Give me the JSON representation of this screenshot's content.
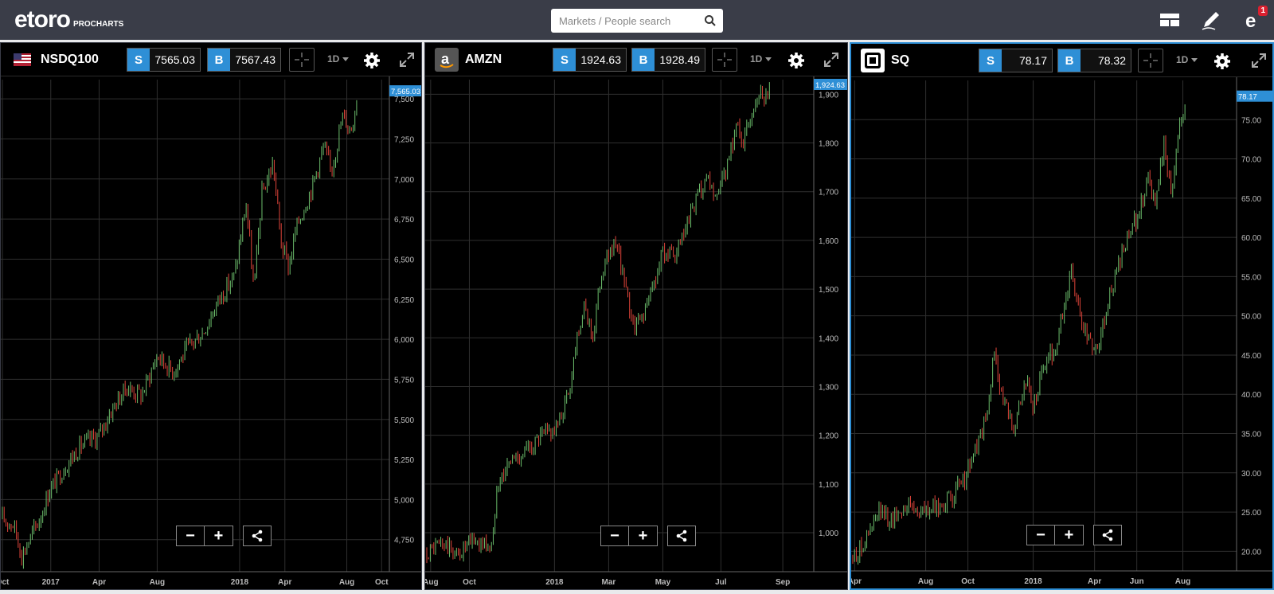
{
  "app": {
    "brand": "etoro",
    "product": "PROCHARTS",
    "search_placeholder": "Markets / People search",
    "notification_count": "1"
  },
  "colors": {
    "topbar": "#3a3d48",
    "accent": "#2e8fd6",
    "bull": "#6cbe6c",
    "bear": "#e0443a",
    "badge": "#d9202f"
  },
  "icons": [
    "search-icon",
    "layout-icon",
    "pencil-icon",
    "user-icon",
    "flag-icon",
    "amazon-icon",
    "square-icon",
    "crosshair-icon",
    "gear-icon",
    "expand-icon",
    "share-icon"
  ],
  "panels": [
    {
      "symbol": "NSDQ100",
      "sell_label": "S",
      "sell": "7565.03",
      "buy_label": "B",
      "buy": "7567.43",
      "timeframe": "1D",
      "chart_data": {
        "type": "candlestick",
        "last_price_label": "7,565.03",
        "ylim": [
          4550,
          7620
        ],
        "y_ticks": [
          4750,
          5000,
          5250,
          5500,
          5750,
          6000,
          6250,
          6500,
          6750,
          7000,
          7250,
          7500
        ],
        "y_tick_labels": [
          "4,750",
          "5,000",
          "5,250",
          "5,500",
          "5,750",
          "6,000",
          "6,250",
          "6,500",
          "6,750",
          "7,000",
          "7,250",
          "7,500"
        ],
        "x_tick_labels": [
          "Oct",
          "2017",
          "Apr",
          "Aug",
          "2018",
          "Apr",
          "Aug",
          "Oct"
        ],
        "x_ticks": [
          0,
          0.125,
          0.25,
          0.4,
          0.613,
          0.73,
          0.89,
          0.98
        ],
        "path": [
          [
            0,
            4880
          ],
          [
            0.03,
            4840
          ],
          [
            0.05,
            4650
          ],
          [
            0.1,
            4900
          ],
          [
            0.12,
            5050
          ],
          [
            0.16,
            5200
          ],
          [
            0.2,
            5330
          ],
          [
            0.25,
            5400
          ],
          [
            0.28,
            5550
          ],
          [
            0.32,
            5700
          ],
          [
            0.36,
            5650
          ],
          [
            0.4,
            5900
          ],
          [
            0.44,
            5800
          ],
          [
            0.48,
            5950
          ],
          [
            0.52,
            6050
          ],
          [
            0.56,
            6250
          ],
          [
            0.6,
            6400
          ],
          [
            0.63,
            6850
          ],
          [
            0.65,
            6300
          ],
          [
            0.67,
            6900
          ],
          [
            0.7,
            7100
          ],
          [
            0.72,
            6600
          ],
          [
            0.74,
            6450
          ],
          [
            0.76,
            6700
          ],
          [
            0.8,
            6950
          ],
          [
            0.83,
            7200
          ],
          [
            0.85,
            7050
          ],
          [
            0.88,
            7400
          ],
          [
            0.9,
            7300
          ],
          [
            0.92,
            7550
          ]
        ],
        "series_end": 0.92
      }
    },
    {
      "symbol": "AMZN",
      "sell_label": "S",
      "sell": "1924.63",
      "buy_label": "B",
      "buy": "1928.49",
      "timeframe": "1D",
      "chart_data": {
        "type": "candlestick",
        "last_price_label": "1,924.63",
        "ylim": [
          920,
          1930
        ],
        "y_ticks": [
          1000,
          1100,
          1200,
          1300,
          1400,
          1500,
          1600,
          1700,
          1800,
          1900
        ],
        "y_tick_labels": [
          "1,000",
          "1,100",
          "1,200",
          "1,300",
          "1,400",
          "1,500",
          "1,600",
          "1,700",
          "1,800",
          "1,900"
        ],
        "x_tick_labels": [
          "Aug",
          "Oct",
          "2018",
          "Mar",
          "May",
          "Jul",
          "Sep"
        ],
        "x_ticks": [
          0.01,
          0.11,
          0.33,
          0.47,
          0.61,
          0.76,
          0.92
        ],
        "path": [
          [
            0,
            960
          ],
          [
            0.04,
            980
          ],
          [
            0.08,
            955
          ],
          [
            0.12,
            985
          ],
          [
            0.17,
            970
          ],
          [
            0.18,
            1100
          ],
          [
            0.22,
            1150
          ],
          [
            0.26,
            1170
          ],
          [
            0.3,
            1200
          ],
          [
            0.34,
            1220
          ],
          [
            0.37,
            1300
          ],
          [
            0.39,
            1420
          ],
          [
            0.41,
            1460
          ],
          [
            0.43,
            1400
          ],
          [
            0.45,
            1530
          ],
          [
            0.48,
            1590
          ],
          [
            0.5,
            1560
          ],
          [
            0.52,
            1470
          ],
          [
            0.54,
            1420
          ],
          [
            0.57,
            1470
          ],
          [
            0.59,
            1520
          ],
          [
            0.61,
            1580
          ],
          [
            0.64,
            1560
          ],
          [
            0.67,
            1620
          ],
          [
            0.7,
            1690
          ],
          [
            0.73,
            1720
          ],
          [
            0.75,
            1680
          ],
          [
            0.78,
            1760
          ],
          [
            0.8,
            1840
          ],
          [
            0.82,
            1800
          ],
          [
            0.84,
            1870
          ],
          [
            0.86,
            1910
          ],
          [
            0.88,
            1900
          ],
          [
            0.89,
            1925
          ]
        ],
        "series_end": 0.89
      }
    },
    {
      "symbol": "SQ",
      "sell_label": "S",
      "sell": "78.17",
      "buy_label": "B",
      "buy": "78.32",
      "timeframe": "1D",
      "chart_data": {
        "type": "candlestick",
        "last_price_label": "78.17",
        "ylim": [
          17.5,
          80
        ],
        "y_ticks": [
          20,
          25,
          30,
          35,
          40,
          45,
          50,
          55,
          60,
          65,
          70,
          75
        ],
        "y_tick_labels": [
          "20.00",
          "25.00",
          "30.00",
          "35.00",
          "40.00",
          "45.00",
          "50.00",
          "55.00",
          "60.00",
          "65.00",
          "70.00",
          "75.00"
        ],
        "x_tick_labels": [
          "Apr",
          "Aug",
          "Oct",
          "2018",
          "Apr",
          "Jun",
          "Aug"
        ],
        "x_ticks": [
          0.005,
          0.19,
          0.3,
          0.47,
          0.63,
          0.74,
          0.86
        ],
        "path": [
          [
            0,
            19
          ],
          [
            0.04,
            22
          ],
          [
            0.07,
            25
          ],
          [
            0.1,
            24
          ],
          [
            0.14,
            26
          ],
          [
            0.18,
            25
          ],
          [
            0.22,
            25.5
          ],
          [
            0.26,
            27
          ],
          [
            0.29,
            29
          ],
          [
            0.32,
            33
          ],
          [
            0.35,
            37
          ],
          [
            0.37,
            46
          ],
          [
            0.39,
            39
          ],
          [
            0.42,
            36
          ],
          [
            0.45,
            42
          ],
          [
            0.47,
            38
          ],
          [
            0.5,
            44
          ],
          [
            0.53,
            46
          ],
          [
            0.55,
            51
          ],
          [
            0.57,
            56
          ],
          [
            0.59,
            50
          ],
          [
            0.61,
            47
          ],
          [
            0.64,
            46
          ],
          [
            0.66,
            51
          ],
          [
            0.69,
            56
          ],
          [
            0.72,
            60
          ],
          [
            0.75,
            64
          ],
          [
            0.77,
            68
          ],
          [
            0.79,
            64
          ],
          [
            0.81,
            72
          ],
          [
            0.83,
            66
          ],
          [
            0.85,
            74
          ],
          [
            0.87,
            78
          ]
        ],
        "series_end": 0.87
      }
    }
  ]
}
